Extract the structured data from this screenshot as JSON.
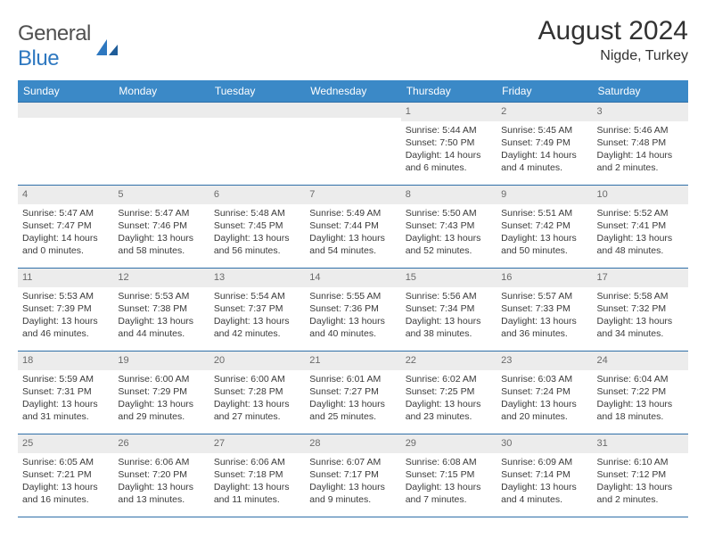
{
  "logo": {
    "text_a": "General",
    "text_b": "Blue"
  },
  "title": "August 2024",
  "subtitle": "Nigde, Turkey",
  "colors": {
    "header_bg": "#3b89c7",
    "header_text": "#ffffff",
    "rule": "#2f6fa8",
    "daynum_bg": "#ececec",
    "daynum_text": "#6a6a6a",
    "body_text": "#3a3a3a",
    "logo_gray": "#505050",
    "logo_blue": "#2e78c0"
  },
  "font_sizes_pt": {
    "title": 22,
    "subtitle": 12,
    "dayhead": 9,
    "cell": 8
  },
  "day_headers": [
    "Sunday",
    "Monday",
    "Tuesday",
    "Wednesday",
    "Thursday",
    "Friday",
    "Saturday"
  ],
  "weeks": [
    [
      {
        "n": "",
        "sr": "",
        "ss": "",
        "dl": ""
      },
      {
        "n": "",
        "sr": "",
        "ss": "",
        "dl": ""
      },
      {
        "n": "",
        "sr": "",
        "ss": "",
        "dl": ""
      },
      {
        "n": "",
        "sr": "",
        "ss": "",
        "dl": ""
      },
      {
        "n": "1",
        "sr": "Sunrise: 5:44 AM",
        "ss": "Sunset: 7:50 PM",
        "dl": "Daylight: 14 hours and 6 minutes."
      },
      {
        "n": "2",
        "sr": "Sunrise: 5:45 AM",
        "ss": "Sunset: 7:49 PM",
        "dl": "Daylight: 14 hours and 4 minutes."
      },
      {
        "n": "3",
        "sr": "Sunrise: 5:46 AM",
        "ss": "Sunset: 7:48 PM",
        "dl": "Daylight: 14 hours and 2 minutes."
      }
    ],
    [
      {
        "n": "4",
        "sr": "Sunrise: 5:47 AM",
        "ss": "Sunset: 7:47 PM",
        "dl": "Daylight: 14 hours and 0 minutes."
      },
      {
        "n": "5",
        "sr": "Sunrise: 5:47 AM",
        "ss": "Sunset: 7:46 PM",
        "dl": "Daylight: 13 hours and 58 minutes."
      },
      {
        "n": "6",
        "sr": "Sunrise: 5:48 AM",
        "ss": "Sunset: 7:45 PM",
        "dl": "Daylight: 13 hours and 56 minutes."
      },
      {
        "n": "7",
        "sr": "Sunrise: 5:49 AM",
        "ss": "Sunset: 7:44 PM",
        "dl": "Daylight: 13 hours and 54 minutes."
      },
      {
        "n": "8",
        "sr": "Sunrise: 5:50 AM",
        "ss": "Sunset: 7:43 PM",
        "dl": "Daylight: 13 hours and 52 minutes."
      },
      {
        "n": "9",
        "sr": "Sunrise: 5:51 AM",
        "ss": "Sunset: 7:42 PM",
        "dl": "Daylight: 13 hours and 50 minutes."
      },
      {
        "n": "10",
        "sr": "Sunrise: 5:52 AM",
        "ss": "Sunset: 7:41 PM",
        "dl": "Daylight: 13 hours and 48 minutes."
      }
    ],
    [
      {
        "n": "11",
        "sr": "Sunrise: 5:53 AM",
        "ss": "Sunset: 7:39 PM",
        "dl": "Daylight: 13 hours and 46 minutes."
      },
      {
        "n": "12",
        "sr": "Sunrise: 5:53 AM",
        "ss": "Sunset: 7:38 PM",
        "dl": "Daylight: 13 hours and 44 minutes."
      },
      {
        "n": "13",
        "sr": "Sunrise: 5:54 AM",
        "ss": "Sunset: 7:37 PM",
        "dl": "Daylight: 13 hours and 42 minutes."
      },
      {
        "n": "14",
        "sr": "Sunrise: 5:55 AM",
        "ss": "Sunset: 7:36 PM",
        "dl": "Daylight: 13 hours and 40 minutes."
      },
      {
        "n": "15",
        "sr": "Sunrise: 5:56 AM",
        "ss": "Sunset: 7:34 PM",
        "dl": "Daylight: 13 hours and 38 minutes."
      },
      {
        "n": "16",
        "sr": "Sunrise: 5:57 AM",
        "ss": "Sunset: 7:33 PM",
        "dl": "Daylight: 13 hours and 36 minutes."
      },
      {
        "n": "17",
        "sr": "Sunrise: 5:58 AM",
        "ss": "Sunset: 7:32 PM",
        "dl": "Daylight: 13 hours and 34 minutes."
      }
    ],
    [
      {
        "n": "18",
        "sr": "Sunrise: 5:59 AM",
        "ss": "Sunset: 7:31 PM",
        "dl": "Daylight: 13 hours and 31 minutes."
      },
      {
        "n": "19",
        "sr": "Sunrise: 6:00 AM",
        "ss": "Sunset: 7:29 PM",
        "dl": "Daylight: 13 hours and 29 minutes."
      },
      {
        "n": "20",
        "sr": "Sunrise: 6:00 AM",
        "ss": "Sunset: 7:28 PM",
        "dl": "Daylight: 13 hours and 27 minutes."
      },
      {
        "n": "21",
        "sr": "Sunrise: 6:01 AM",
        "ss": "Sunset: 7:27 PM",
        "dl": "Daylight: 13 hours and 25 minutes."
      },
      {
        "n": "22",
        "sr": "Sunrise: 6:02 AM",
        "ss": "Sunset: 7:25 PM",
        "dl": "Daylight: 13 hours and 23 minutes."
      },
      {
        "n": "23",
        "sr": "Sunrise: 6:03 AM",
        "ss": "Sunset: 7:24 PM",
        "dl": "Daylight: 13 hours and 20 minutes."
      },
      {
        "n": "24",
        "sr": "Sunrise: 6:04 AM",
        "ss": "Sunset: 7:22 PM",
        "dl": "Daylight: 13 hours and 18 minutes."
      }
    ],
    [
      {
        "n": "25",
        "sr": "Sunrise: 6:05 AM",
        "ss": "Sunset: 7:21 PM",
        "dl": "Daylight: 13 hours and 16 minutes."
      },
      {
        "n": "26",
        "sr": "Sunrise: 6:06 AM",
        "ss": "Sunset: 7:20 PM",
        "dl": "Daylight: 13 hours and 13 minutes."
      },
      {
        "n": "27",
        "sr": "Sunrise: 6:06 AM",
        "ss": "Sunset: 7:18 PM",
        "dl": "Daylight: 13 hours and 11 minutes."
      },
      {
        "n": "28",
        "sr": "Sunrise: 6:07 AM",
        "ss": "Sunset: 7:17 PM",
        "dl": "Daylight: 13 hours and 9 minutes."
      },
      {
        "n": "29",
        "sr": "Sunrise: 6:08 AM",
        "ss": "Sunset: 7:15 PM",
        "dl": "Daylight: 13 hours and 7 minutes."
      },
      {
        "n": "30",
        "sr": "Sunrise: 6:09 AM",
        "ss": "Sunset: 7:14 PM",
        "dl": "Daylight: 13 hours and 4 minutes."
      },
      {
        "n": "31",
        "sr": "Sunrise: 6:10 AM",
        "ss": "Sunset: 7:12 PM",
        "dl": "Daylight: 13 hours and 2 minutes."
      }
    ]
  ]
}
